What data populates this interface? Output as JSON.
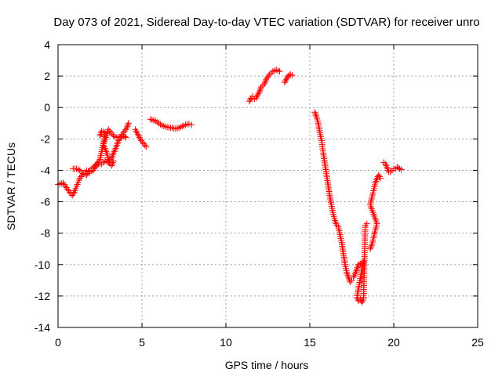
{
  "chart_data": {
    "type": "scatter",
    "title": "Day 073 of 2021, Sidereal Day-to-day VTEC variation (SDTVAR) for receiver unro",
    "xlabel": "GPS time / hours",
    "ylabel": "SDTVAR / TECUs",
    "xlim": [
      0,
      25
    ],
    "ylim": [
      -14,
      4
    ],
    "xticks": [
      0,
      5,
      10,
      15,
      20,
      25
    ],
    "xtick_labels": [
      "0",
      "5",
      "10",
      "15",
      "20",
      "25"
    ],
    "yticks": [
      -14,
      -12,
      -10,
      -8,
      -6,
      -4,
      -2,
      0,
      2,
      4
    ],
    "ytick_labels": [
      "-14",
      "-12",
      "-10",
      "-8",
      "-6",
      "-4",
      "-2",
      "0",
      "2",
      "4"
    ],
    "grid": true,
    "marker": "+",
    "series": [
      {
        "name": "SDTVAR",
        "color": "#ff0000",
        "segments": [
          [
            [
              0.0,
              -4.9
            ],
            [
              0.3,
              -4.8
            ],
            [
              0.5,
              -5.1
            ],
            [
              0.7,
              -5.4
            ],
            [
              0.85,
              -5.6
            ],
            [
              1.0,
              -5.3
            ],
            [
              1.15,
              -4.9
            ],
            [
              1.3,
              -4.5
            ],
            [
              1.5,
              -4.2
            ],
            [
              1.7,
              -4.0
            ],
            [
              1.9,
              -4.1
            ],
            [
              2.1,
              -4.0
            ],
            [
              2.3,
              -3.6
            ],
            [
              2.5,
              -3.3
            ],
            [
              2.6,
              -2.8
            ],
            [
              2.7,
              -2.3
            ],
            [
              2.85,
              -1.9
            ],
            [
              3.0,
              -1.4
            ],
            [
              3.15,
              -1.6
            ],
            [
              3.3,
              -1.8
            ],
            [
              3.5,
              -1.9
            ],
            [
              3.7,
              -1.9
            ],
            [
              3.9,
              -1.6
            ],
            [
              4.1,
              -1.3
            ],
            [
              4.2,
              -1.0
            ]
          ],
          [
            [
              0.9,
              -3.9
            ],
            [
              1.1,
              -3.9
            ],
            [
              1.3,
              -4.0
            ],
            [
              1.5,
              -4.2
            ],
            [
              1.7,
              -4.3
            ],
            [
              1.9,
              -4.0
            ],
            [
              2.1,
              -3.8
            ],
            [
              2.4,
              -3.6
            ],
            [
              2.6,
              -3.6
            ],
            [
              2.8,
              -3.4
            ],
            [
              3.0,
              -3.5
            ],
            [
              3.2,
              -3.2
            ],
            [
              3.3,
              -2.9
            ],
            [
              3.4,
              -2.7
            ],
            [
              3.5,
              -2.4
            ],
            [
              3.6,
              -2.1
            ],
            [
              3.75,
              -1.9
            ],
            [
              3.9,
              -1.8
            ],
            [
              4.05,
              -1.9
            ]
          ],
          [
            [
              2.5,
              -1.8
            ],
            [
              2.6,
              -1.5
            ],
            [
              2.8,
              -1.6
            ],
            [
              2.7,
              -2.4
            ],
            [
              2.8,
              -2.6
            ],
            [
              2.9,
              -2.9
            ],
            [
              3.0,
              -3.3
            ],
            [
              3.1,
              -3.6
            ],
            [
              3.2,
              -3.7
            ],
            [
              3.3,
              -3.4
            ]
          ],
          [
            [
              4.6,
              -1.4
            ],
            [
              4.7,
              -1.6
            ],
            [
              4.8,
              -1.8
            ],
            [
              4.95,
              -2.1
            ],
            [
              5.1,
              -2.3
            ],
            [
              5.25,
              -2.5
            ]
          ],
          [
            [
              5.5,
              -0.75
            ],
            [
              5.8,
              -0.85
            ],
            [
              6.0,
              -1.0
            ],
            [
              6.2,
              -1.15
            ],
            [
              6.5,
              -1.25
            ],
            [
              6.8,
              -1.3
            ],
            [
              7.0,
              -1.35
            ],
            [
              7.2,
              -1.3
            ],
            [
              7.4,
              -1.2
            ],
            [
              7.6,
              -1.1
            ],
            [
              7.8,
              -1.05
            ],
            [
              7.95,
              -1.1
            ]
          ],
          [
            [
              11.4,
              0.4
            ],
            [
              11.5,
              0.6
            ],
            [
              11.6,
              0.7
            ],
            [
              11.7,
              0.55
            ],
            [
              11.8,
              0.6
            ],
            [
              12.0,
              1.0
            ],
            [
              12.1,
              1.3
            ],
            [
              12.3,
              1.5
            ],
            [
              12.4,
              1.8
            ],
            [
              12.6,
              2.1
            ],
            [
              12.8,
              2.3
            ],
            [
              13.0,
              2.4
            ],
            [
              13.2,
              2.3
            ]
          ],
          [
            [
              13.5,
              1.6
            ],
            [
              13.6,
              1.8
            ],
            [
              13.7,
              2.0
            ],
            [
              13.85,
              2.1
            ],
            [
              13.95,
              2.05
            ]
          ],
          [
            [
              15.3,
              -0.3
            ],
            [
              15.4,
              -0.6
            ],
            [
              15.5,
              -1.0
            ],
            [
              15.6,
              -1.6
            ],
            [
              15.7,
              -2.1
            ],
            [
              15.8,
              -2.9
            ],
            [
              15.9,
              -3.6
            ],
            [
              16.0,
              -4.3
            ],
            [
              16.1,
              -5.0
            ],
            [
              16.2,
              -5.7
            ],
            [
              16.3,
              -6.3
            ],
            [
              16.4,
              -6.8
            ],
            [
              16.5,
              -7.2
            ],
            [
              16.6,
              -7.5
            ],
            [
              16.7,
              -7.6
            ],
            [
              16.8,
              -8.1
            ],
            [
              16.9,
              -8.6
            ],
            [
              17.0,
              -9.3
            ],
            [
              17.1,
              -10.0
            ],
            [
              17.2,
              -10.5
            ],
            [
              17.3,
              -10.8
            ],
            [
              17.4,
              -11.1
            ],
            [
              17.5,
              -11.0
            ]
          ],
          [
            [
              17.6,
              -10.8
            ],
            [
              17.7,
              -10.6
            ],
            [
              17.8,
              -10.3
            ],
            [
              17.9,
              -10.0
            ],
            [
              18.1,
              -9.9
            ],
            [
              18.2,
              -9.8
            ],
            [
              17.8,
              -12.1
            ],
            [
              17.9,
              -12.3
            ],
            [
              18.0,
              -12.2
            ],
            [
              18.1,
              -12.4
            ],
            [
              18.2,
              -12.2
            ],
            [
              18.3,
              -7.5
            ],
            [
              18.4,
              -7.4
            ]
          ],
          [
            [
              18.6,
              -9.0
            ],
            [
              18.7,
              -8.7
            ],
            [
              18.8,
              -8.3
            ],
            [
              18.9,
              -7.8
            ],
            [
              19.0,
              -7.4
            ],
            [
              18.6,
              -6.2
            ],
            [
              18.7,
              -5.7
            ],
            [
              18.8,
              -5.3
            ],
            [
              18.9,
              -4.8
            ],
            [
              19.0,
              -4.5
            ],
            [
              19.1,
              -4.3
            ],
            [
              19.2,
              -4.5
            ]
          ],
          [
            [
              19.4,
              -3.5
            ],
            [
              19.5,
              -3.6
            ],
            [
              19.6,
              -3.8
            ],
            [
              19.7,
              -4.1
            ],
            [
              19.8,
              -4.1
            ],
            [
              19.9,
              -4.0
            ],
            [
              20.0,
              -3.9
            ],
            [
              20.1,
              -3.9
            ],
            [
              20.2,
              -3.8
            ],
            [
              20.35,
              -3.9
            ],
            [
              20.45,
              -3.95
            ]
          ]
        ]
      }
    ]
  }
}
